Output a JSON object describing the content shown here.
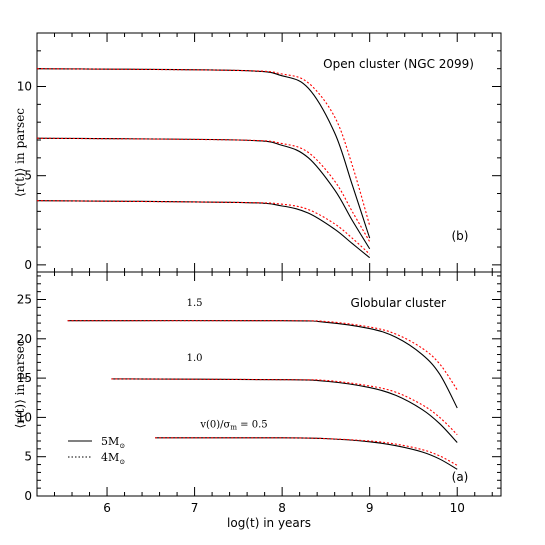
{
  "chart_data": [
    {
      "id": "b",
      "type": "line",
      "annotation": "Open cluster (NGC 2099)",
      "panel_label": "(b)",
      "ylabel": "⟨r(t)⟩ in parsec",
      "xlim": [
        5.2,
        10.5
      ],
      "ylim": [
        -0.4,
        13.0
      ],
      "yticks": [
        0,
        5,
        10
      ],
      "series": [
        {
          "style": "solid",
          "color": "#000000",
          "x": [
            5.2,
            7.5,
            8.0,
            8.3,
            8.6,
            8.8,
            9.0
          ],
          "y": [
            11.0,
            10.9,
            10.6,
            9.9,
            7.4,
            4.5,
            1.5
          ]
        },
        {
          "style": "dotted",
          "color": "#ff0000",
          "x": [
            5.2,
            7.5,
            8.0,
            8.3,
            8.6,
            8.8,
            9.0
          ],
          "y": [
            11.0,
            10.9,
            10.7,
            10.2,
            8.3,
            5.6,
            2.2
          ]
        },
        {
          "style": "solid",
          "color": "#000000",
          "x": [
            5.2,
            7.5,
            8.0,
            8.3,
            8.6,
            8.8,
            9.0
          ],
          "y": [
            7.1,
            7.0,
            6.7,
            6.0,
            4.2,
            2.5,
            0.9
          ]
        },
        {
          "style": "dotted",
          "color": "#ff0000",
          "x": [
            5.2,
            7.5,
            8.0,
            8.3,
            8.6,
            8.8,
            9.0
          ],
          "y": [
            7.1,
            7.0,
            6.8,
            6.3,
            4.7,
            3.0,
            1.3
          ]
        },
        {
          "style": "solid",
          "color": "#000000",
          "x": [
            5.2,
            7.5,
            8.0,
            8.3,
            8.6,
            8.8,
            9.0
          ],
          "y": [
            3.6,
            3.5,
            3.3,
            2.9,
            2.0,
            1.2,
            0.4
          ]
        },
        {
          "style": "dotted",
          "color": "#ff0000",
          "x": [
            5.2,
            7.5,
            8.0,
            8.3,
            8.6,
            8.8,
            9.0
          ],
          "y": [
            3.6,
            3.5,
            3.4,
            3.1,
            2.3,
            1.5,
            0.6
          ]
        }
      ]
    },
    {
      "id": "a",
      "type": "line",
      "annotation": "Globular cluster",
      "panel_label": "(a)",
      "xlabel": "log(t) in years",
      "ylabel": "⟨r(t)⟩ in parsec",
      "xlim": [
        5.2,
        10.5
      ],
      "ylim": [
        0,
        28.5
      ],
      "xticks": [
        6,
        7,
        8,
        9,
        10
      ],
      "yticks": [
        0,
        5,
        10,
        15,
        20,
        25
      ],
      "curve_labels": [
        {
          "text": "1.5",
          "x": 7.0,
          "y": 24.2
        },
        {
          "text": "1.0",
          "x": 7.0,
          "y": 17.2
        },
        {
          "text": "v(0)/σ = 0.5",
          "x": 7.45,
          "y": 8.7
        }
      ],
      "legend": {
        "position": "bottom-left",
        "items": [
          {
            "label": "5M⊙",
            "style": "solid"
          },
          {
            "label": "4M⊙",
            "style": "dotted"
          }
        ]
      },
      "series": [
        {
          "style": "solid",
          "color": "#000000",
          "x": [
            5.55,
            8.0,
            8.5,
            9.0,
            9.3,
            9.6,
            9.8,
            10.0
          ],
          "y": [
            22.3,
            22.3,
            22.1,
            21.3,
            20.2,
            18.0,
            15.5,
            11.2
          ]
        },
        {
          "style": "dotted",
          "color": "#ff0000",
          "x": [
            5.55,
            8.0,
            8.5,
            9.0,
            9.3,
            9.6,
            9.8,
            10.0
          ],
          "y": [
            22.3,
            22.3,
            22.2,
            21.5,
            20.6,
            18.8,
            16.8,
            13.5
          ]
        },
        {
          "style": "solid",
          "color": "#000000",
          "x": [
            6.05,
            8.0,
            8.5,
            9.0,
            9.3,
            9.6,
            9.8,
            10.0
          ],
          "y": [
            14.9,
            14.8,
            14.6,
            13.8,
            12.8,
            11.0,
            9.2,
            6.8
          ]
        },
        {
          "style": "dotted",
          "color": "#ff0000",
          "x": [
            6.05,
            8.0,
            8.5,
            9.0,
            9.3,
            9.6,
            9.8,
            10.0
          ],
          "y": [
            14.9,
            14.8,
            14.7,
            14.0,
            13.2,
            11.6,
            10.0,
            7.8
          ]
        },
        {
          "style": "solid",
          "color": "#000000",
          "x": [
            6.55,
            8.0,
            8.5,
            9.0,
            9.3,
            9.6,
            9.8,
            10.0
          ],
          "y": [
            7.4,
            7.4,
            7.3,
            6.9,
            6.4,
            5.6,
            4.7,
            3.4
          ]
        },
        {
          "style": "dotted",
          "color": "#ff0000",
          "x": [
            6.55,
            8.0,
            8.5,
            9.0,
            9.3,
            9.6,
            9.8,
            10.0
          ],
          "y": [
            7.4,
            7.4,
            7.3,
            7.0,
            6.6,
            5.9,
            5.1,
            3.9
          ]
        }
      ]
    }
  ]
}
